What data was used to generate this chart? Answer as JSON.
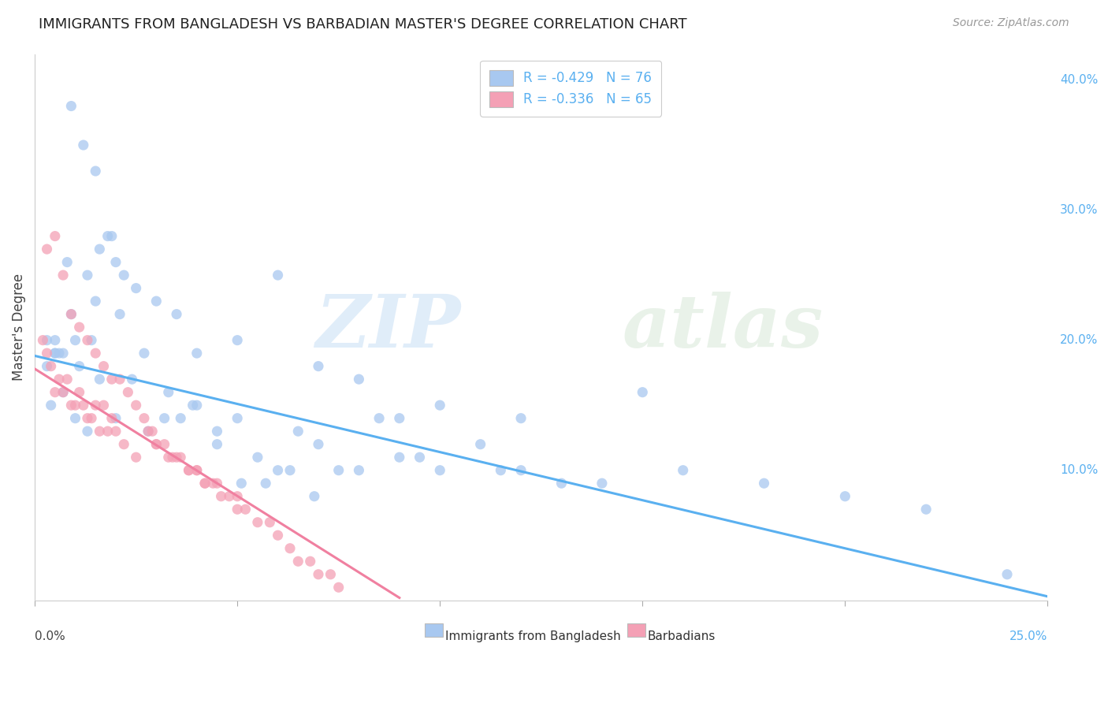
{
  "title": "IMMIGRANTS FROM BANGLADESH VS BARBADIAN MASTER'S DEGREE CORRELATION CHART",
  "source": "Source: ZipAtlas.com",
  "ylabel": "Master's Degree",
  "right_yticks": [
    "40.0%",
    "30.0%",
    "20.0%",
    "10.0%"
  ],
  "right_ytick_vals": [
    0.4,
    0.3,
    0.2,
    0.1
  ],
  "legend_blue_label": "R = -0.429   N = 76",
  "legend_pink_label": "R = -0.336   N = 65",
  "legend_bottom_blue": "Immigrants from Bangladesh",
  "legend_bottom_pink": "Barbadians",
  "watermark_zip": "ZIP",
  "watermark_atlas": "atlas",
  "blue_color": "#a8c8f0",
  "pink_color": "#f4a0b5",
  "background_color": "#ffffff",
  "grid_color": "#dddddd",
  "xlim": [
    0.0,
    0.25
  ],
  "ylim": [
    0.0,
    0.42
  ],
  "blue_scatter_x": [
    0.007,
    0.012,
    0.015,
    0.018,
    0.005,
    0.008,
    0.01,
    0.013,
    0.02,
    0.003,
    0.006,
    0.009,
    0.011,
    0.014,
    0.016,
    0.019,
    0.022,
    0.025,
    0.03,
    0.035,
    0.04,
    0.05,
    0.06,
    0.07,
    0.08,
    0.09,
    0.1,
    0.12,
    0.15,
    0.004,
    0.007,
    0.01,
    0.013,
    0.016,
    0.02,
    0.024,
    0.028,
    0.032,
    0.036,
    0.04,
    0.045,
    0.05,
    0.055,
    0.06,
    0.065,
    0.07,
    0.075,
    0.08,
    0.085,
    0.09,
    0.095,
    0.1,
    0.11,
    0.115,
    0.12,
    0.13,
    0.14,
    0.16,
    0.18,
    0.2,
    0.22,
    0.24,
    0.005,
    0.009,
    0.015,
    0.021,
    0.027,
    0.033,
    0.039,
    0.045,
    0.051,
    0.057,
    0.063,
    0.069,
    0.005,
    0.003
  ],
  "blue_scatter_y": [
    0.19,
    0.35,
    0.33,
    0.28,
    0.2,
    0.26,
    0.2,
    0.25,
    0.26,
    0.18,
    0.19,
    0.22,
    0.18,
    0.2,
    0.27,
    0.28,
    0.25,
    0.24,
    0.23,
    0.22,
    0.19,
    0.2,
    0.25,
    0.18,
    0.17,
    0.14,
    0.15,
    0.14,
    0.16,
    0.15,
    0.16,
    0.14,
    0.13,
    0.17,
    0.14,
    0.17,
    0.13,
    0.14,
    0.14,
    0.15,
    0.12,
    0.14,
    0.11,
    0.1,
    0.13,
    0.12,
    0.1,
    0.1,
    0.14,
    0.11,
    0.11,
    0.1,
    0.12,
    0.1,
    0.1,
    0.09,
    0.09,
    0.1,
    0.09,
    0.08,
    0.07,
    0.02,
    0.19,
    0.38,
    0.23,
    0.22,
    0.19,
    0.16,
    0.15,
    0.13,
    0.09,
    0.09,
    0.1,
    0.08,
    0.19,
    0.2
  ],
  "pink_scatter_x": [
    0.002,
    0.003,
    0.004,
    0.005,
    0.006,
    0.007,
    0.008,
    0.009,
    0.01,
    0.011,
    0.012,
    0.013,
    0.014,
    0.015,
    0.016,
    0.017,
    0.018,
    0.019,
    0.02,
    0.022,
    0.025,
    0.028,
    0.03,
    0.033,
    0.035,
    0.038,
    0.04,
    0.042,
    0.045,
    0.05,
    0.003,
    0.005,
    0.007,
    0.009,
    0.011,
    0.013,
    0.015,
    0.017,
    0.019,
    0.021,
    0.023,
    0.025,
    0.027,
    0.029,
    0.03,
    0.032,
    0.034,
    0.036,
    0.038,
    0.04,
    0.042,
    0.044,
    0.046,
    0.048,
    0.05,
    0.052,
    0.055,
    0.058,
    0.06,
    0.063,
    0.065,
    0.068,
    0.07,
    0.073,
    0.075
  ],
  "pink_scatter_y": [
    0.2,
    0.19,
    0.18,
    0.16,
    0.17,
    0.16,
    0.17,
    0.15,
    0.15,
    0.16,
    0.15,
    0.14,
    0.14,
    0.15,
    0.13,
    0.15,
    0.13,
    0.14,
    0.13,
    0.12,
    0.11,
    0.13,
    0.12,
    0.11,
    0.11,
    0.1,
    0.1,
    0.09,
    0.09,
    0.08,
    0.27,
    0.28,
    0.25,
    0.22,
    0.21,
    0.2,
    0.19,
    0.18,
    0.17,
    0.17,
    0.16,
    0.15,
    0.14,
    0.13,
    0.12,
    0.12,
    0.11,
    0.11,
    0.1,
    0.1,
    0.09,
    0.09,
    0.08,
    0.08,
    0.07,
    0.07,
    0.06,
    0.06,
    0.05,
    0.04,
    0.03,
    0.03,
    0.02,
    0.02,
    0.01
  ],
  "blue_line_x": [
    0.0,
    0.25
  ],
  "blue_line_y": [
    0.188,
    0.003
  ],
  "pink_line_x": [
    0.0,
    0.09
  ],
  "pink_line_y": [
    0.178,
    0.002
  ]
}
